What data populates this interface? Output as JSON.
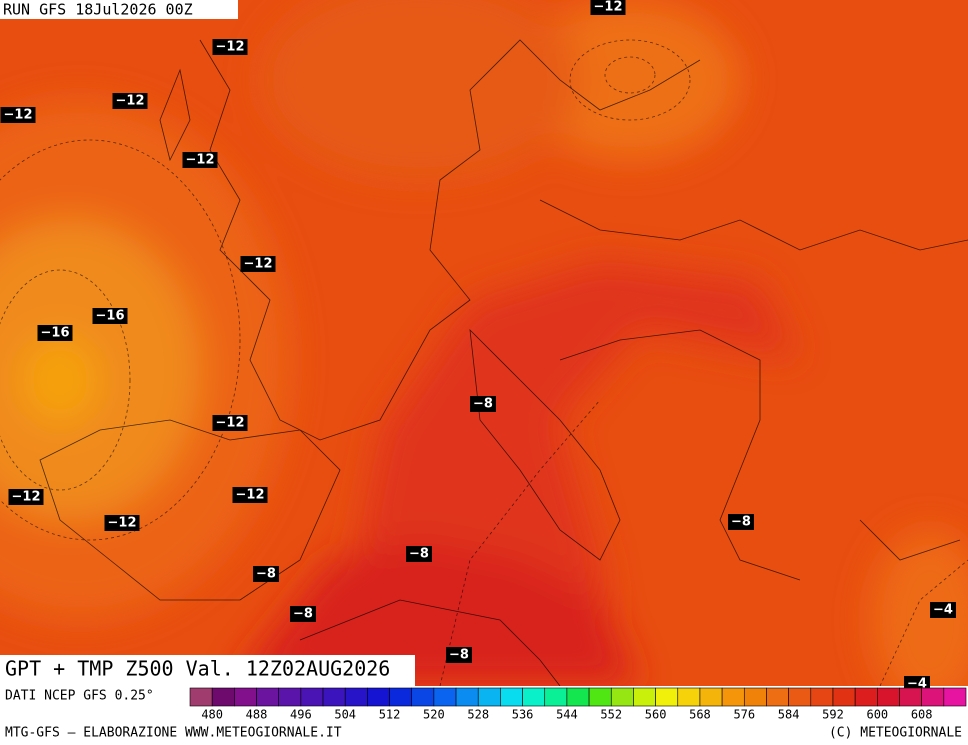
{
  "header": {
    "run": "RUN GFS 18Jul2026 00Z"
  },
  "title": "GPT + TMP Z500 Val. 12Z02AUG2026",
  "source": "DATI NCEP GFS 0.25°",
  "contour_labels": [
    "−12",
    "−12",
    "−12",
    "−12",
    "−12",
    "−12",
    "−12",
    "−12",
    "−12",
    "−12",
    "−16",
    "−16",
    "−8",
    "−8",
    "−8",
    "−8",
    "−8",
    "−8",
    "−4",
    "−4"
  ],
  "colorbar": {
    "colors": [
      "#a03c6e",
      "#6e0a6e",
      "#820f8c",
      "#6a14a0",
      "#5a14aa",
      "#4a14b4",
      "#3c14be",
      "#2814c8",
      "#1414d2",
      "#0a28dc",
      "#0a46e6",
      "#0a64f0",
      "#0a8cf0",
      "#0ab4f0",
      "#0adcf0",
      "#0af0c8",
      "#0af096",
      "#14e650",
      "#50e614",
      "#96e614",
      "#c8f00a",
      "#f0f00a",
      "#f5d20a",
      "#f5b40a",
      "#f5960a",
      "#f0820a",
      "#ee6e14",
      "#ea5a14",
      "#e64614",
      "#e23214",
      "#dc1e1e",
      "#d8142d",
      "#d81450",
      "#dc147a",
      "#e614a0"
    ],
    "ticks": [
      480,
      488,
      496,
      504,
      512,
      520,
      528,
      536,
      544,
      552,
      560,
      568,
      576,
      584,
      592,
      600,
      608
    ]
  },
  "footer": {
    "left": "MTG-GFS — ELABORAZIONE WWW.METEOGIORNALE.IT",
    "right": "(C) METEOGIORNALE"
  }
}
